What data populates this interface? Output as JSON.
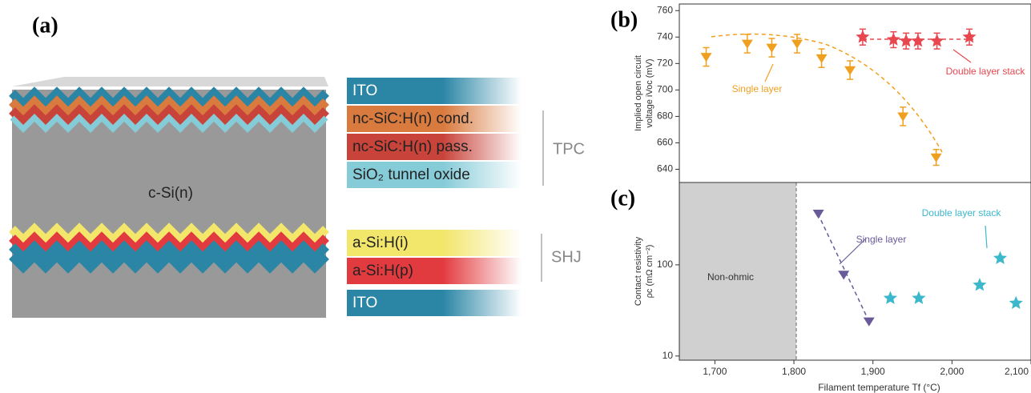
{
  "panel_a": {
    "label": "(a)",
    "substrate": "c-Si(n)",
    "layers": [
      {
        "label": "ITO",
        "color": "#2b86a6"
      },
      {
        "label": "nc-SiC:H(n) cond.",
        "color": "#d97a3e"
      },
      {
        "label": "nc-SiC:H(n) pass.",
        "color": "#c8433a"
      },
      {
        "label": "SiO₂ tunnel oxide",
        "color": "#86cbd8"
      },
      {
        "label": "a-Si:H(i)",
        "color": "#f2e66b"
      },
      {
        "label": "a-Si:H(p)",
        "color": "#e23b3f"
      },
      {
        "label": "ITO",
        "color": "#2b86a6"
      }
    ],
    "groups": [
      "TPC",
      "SHJ"
    ]
  },
  "chart_data": [
    {
      "type": "scatter",
      "panel_label": "(b)",
      "ylabel": [
        "Implied open circuit",
        "voltage iVoc (mV)"
      ],
      "xlim": [
        1655,
        2100
      ],
      "ylim": [
        630,
        765
      ],
      "yticks": [
        640,
        660,
        680,
        700,
        720,
        740,
        760
      ],
      "series": [
        {
          "name": "Single layer",
          "color": "#f0a020",
          "marker": "triangle-down",
          "x": [
            1689,
            1741,
            1772,
            1804,
            1835,
            1871,
            1938,
            1980
          ],
          "values": [
            725,
            735,
            732,
            735,
            724,
            715,
            680,
            649
          ],
          "errors": [
            7,
            7,
            7,
            7,
            7,
            7,
            7,
            6
          ]
        },
        {
          "name": "Double layer stack",
          "color": "#e8474f",
          "marker": "star",
          "x": [
            1887,
            1926,
            1942,
            1957,
            1981,
            2022
          ],
          "values": [
            740,
            738,
            737,
            737,
            737,
            740
          ],
          "errors": [
            6,
            6,
            6,
            6,
            6,
            6
          ]
        }
      ]
    },
    {
      "type": "scatter",
      "panel_label": "(c)",
      "ylabel": [
        "Contact resistivity",
        "ρc (mΩ cm⁻²)"
      ],
      "xlabel": "Filament temperature Tf (°C)",
      "log_y": true,
      "xlim": [
        1655,
        2100
      ],
      "ylim": [
        9,
        800
      ],
      "xticks": [
        {
          "value": 1700,
          "label": "1,700"
        },
        {
          "value": 1800,
          "label": "1,800"
        },
        {
          "value": 1900,
          "label": "1,900"
        },
        {
          "value": 2000,
          "label": "2,000"
        },
        {
          "value": 2100,
          "label": "2,100"
        }
      ],
      "yticks": [
        10,
        100
      ],
      "shaded_to": 1803,
      "shaded_label": "Non-ohmic",
      "series": [
        {
          "name": "Single layer",
          "color": "#6a5a9a",
          "marker": "triangle-down",
          "x": [
            1831,
            1863,
            1895
          ],
          "values": [
            364,
            78,
            24
          ]
        },
        {
          "name": "Double layer stack",
          "color": "#3bb8cc",
          "marker": "star",
          "x": [
            1922,
            1958,
            2035,
            2061,
            2081
          ],
          "values": [
            43,
            43,
            60,
            118,
            38
          ]
        }
      ]
    }
  ]
}
